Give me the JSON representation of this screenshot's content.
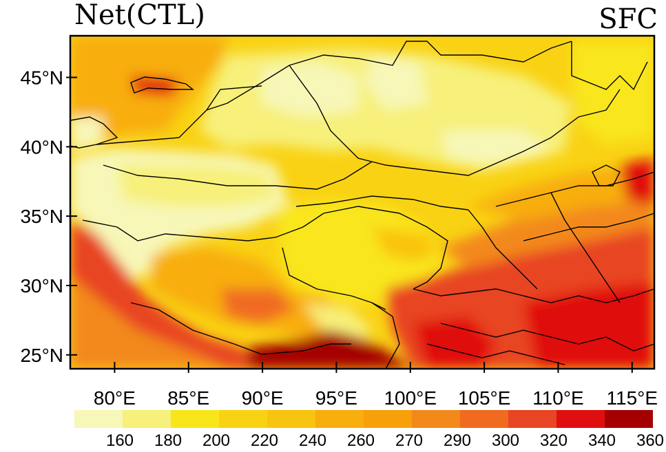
{
  "title": {
    "left": "Net(CTL)",
    "right": "SFC"
  },
  "map": {
    "lat_range": [
      24,
      48
    ],
    "lon_range": [
      77,
      116.5
    ],
    "lat_ticks": [
      {
        "value": 45,
        "label": "45°N"
      },
      {
        "value": 40,
        "label": "40°N"
      },
      {
        "value": 35,
        "label": "35°N"
      },
      {
        "value": 30,
        "label": "30°N"
      },
      {
        "value": 25,
        "label": "25°N"
      }
    ],
    "lon_ticks": [
      {
        "value": 80,
        "label": "80°E"
      },
      {
        "value": 85,
        "label": "85°E"
      },
      {
        "value": 90,
        "label": "90°E"
      },
      {
        "value": 95,
        "label": "95°E"
      },
      {
        "value": 100,
        "label": "100°E"
      },
      {
        "value": 105,
        "label": "105°E"
      },
      {
        "value": 110,
        "label": "110°E"
      },
      {
        "value": 115,
        "label": "115°E"
      }
    ],
    "background_color": "#f9d214"
  },
  "colorbar": {
    "colors": [
      "#f7f7b8",
      "#f7f07a",
      "#f9e61a",
      "#f9d214",
      "#f9c40f",
      "#f8ae0c",
      "#f8a00a",
      "#f3891a",
      "#f06a20",
      "#e84524",
      "#e00f0f",
      "#a50000"
    ],
    "labels": [
      "160",
      "180",
      "200",
      "220",
      "240",
      "260",
      "270",
      "290",
      "300",
      "320",
      "340",
      "360"
    ]
  }
}
